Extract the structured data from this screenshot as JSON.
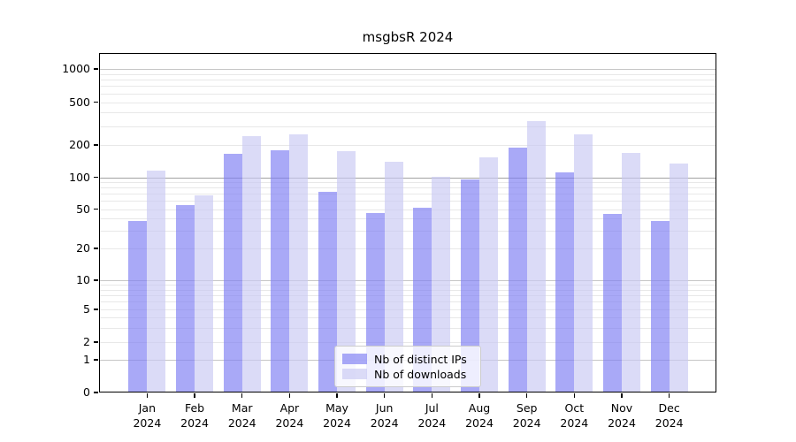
{
  "chart_data": {
    "type": "bar",
    "title": "msgbsR 2024",
    "categories": [
      "Jan",
      "Feb",
      "Mar",
      "Apr",
      "May",
      "Jun",
      "Jul",
      "Aug",
      "Sep",
      "Oct",
      "Nov",
      "Dec"
    ],
    "category_year": "2024",
    "series": [
      {
        "name": "Nb of distinct IPs",
        "color": "#7c7cf3",
        "alpha": 0.66,
        "values": [
          38,
          55,
          165,
          180,
          73,
          46,
          51,
          96,
          190,
          110,
          45,
          38
        ]
      },
      {
        "name": "Nb of downloads",
        "color": "#c8c8f3",
        "alpha": 0.66,
        "values": [
          115,
          67,
          240,
          250,
          176,
          140,
          101,
          152,
          330,
          252,
          168,
          135
        ]
      }
    ],
    "xlabel": "",
    "ylabel": "",
    "y_scale": "log-with-zero",
    "y_ticks": [
      0,
      1,
      2,
      5,
      10,
      20,
      50,
      100,
      200,
      500,
      1000
    ],
    "ylim": [
      0,
      1300
    ],
    "grid": true,
    "legend_position": "bottom-center"
  },
  "legend": {
    "items": [
      {
        "label": "Nb of distinct IPs"
      },
      {
        "label": "Nb of downloads"
      }
    ]
  }
}
